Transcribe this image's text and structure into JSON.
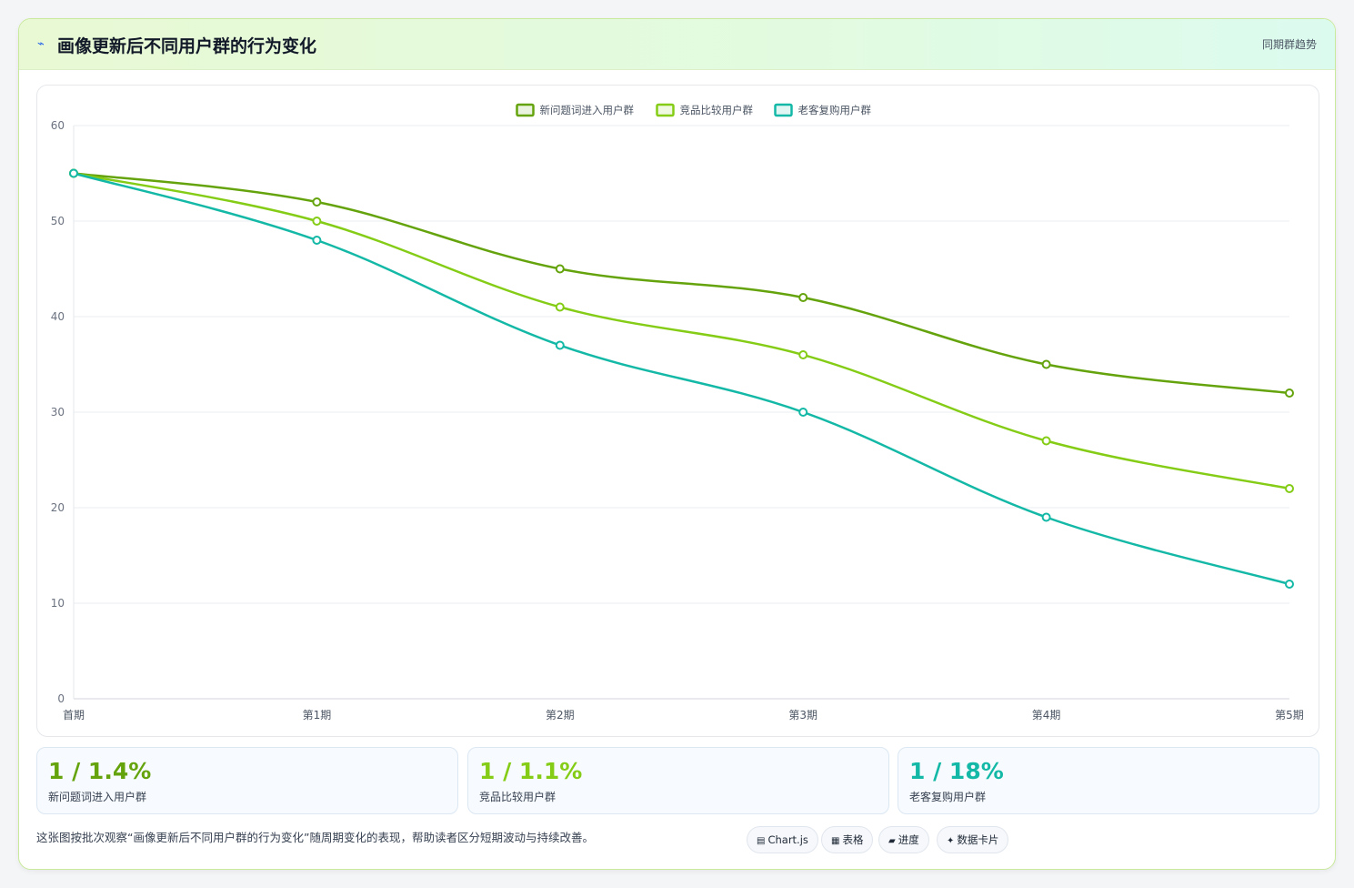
{
  "header": {
    "icon": "lightning-icon",
    "title": "画像更新后不同用户群的行为变化",
    "tag": "同期群趋势"
  },
  "chart_data": {
    "type": "line",
    "title": "",
    "xlabel": "",
    "ylabel": "",
    "categories": [
      "首期",
      "第1期",
      "第2期",
      "第3期",
      "第4期",
      "第5期"
    ],
    "ylim": [
      0,
      60
    ],
    "yticks": [
      0,
      10,
      20,
      30,
      40,
      50,
      60
    ],
    "grid": true,
    "legend": "top-center",
    "series": [
      {
        "name": "新问题词进入用户群",
        "color": "#65a30d",
        "values": [
          55,
          52,
          45,
          42,
          35,
          32
        ]
      },
      {
        "name": "竞品比较用户群",
        "color": "#84cc16",
        "values": [
          55,
          50,
          41,
          36,
          27,
          22
        ]
      },
      {
        "name": "老客复购用户群",
        "color": "#14b8a6",
        "values": [
          55,
          48,
          37,
          30,
          19,
          12
        ]
      }
    ]
  },
  "stats": [
    {
      "value": "1 / 1.4%",
      "label": "新问题词进入用户群",
      "color": "#65a30d"
    },
    {
      "value": "1 / 1.1%",
      "label": "竞品比较用户群",
      "color": "#84cc16"
    },
    {
      "value": "1 / 18%",
      "label": "老客复购用户群",
      "color": "#14b8a6"
    }
  ],
  "footer": {
    "description": "这张图按批次观察“画像更新后不同用户群的行为变化”随周期变化的表现，帮助读者区分短期波动与持续改善。",
    "chips": [
      {
        "icon": "chart-icon",
        "glyph": "▤",
        "label": "Chart.js"
      },
      {
        "icon": "table-icon",
        "glyph": "▦",
        "label": "表格"
      },
      {
        "icon": "progress-icon",
        "glyph": "▰",
        "label": "进度"
      },
      {
        "icon": "sparkle-icon",
        "glyph": "✦",
        "label": "数据卡片"
      }
    ]
  }
}
